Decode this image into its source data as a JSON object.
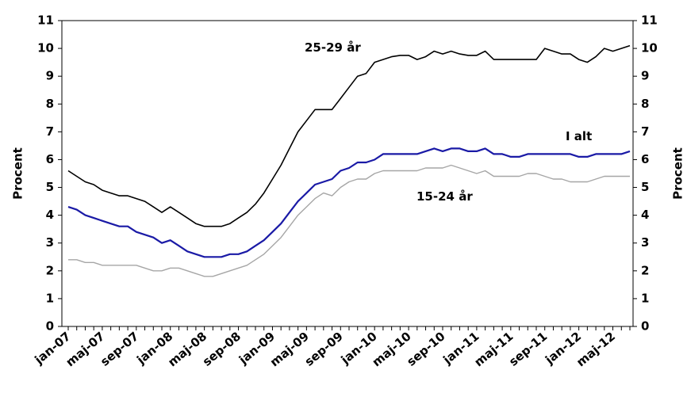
{
  "chart_data": {
    "type": "line",
    "title": "",
    "xlabel": "",
    "ylabel_left": "Procent",
    "ylabel_right": "Procent",
    "ylim": [
      0,
      11
    ],
    "y_ticks": [
      0,
      1,
      2,
      3,
      4,
      5,
      6,
      7,
      8,
      9,
      10,
      11
    ],
    "grid": false,
    "legend": "none",
    "x_tick_labels": [
      "jan-07",
      "maj-07",
      "sep-07",
      "jan-08",
      "maj-08",
      "sep-08",
      "jan-09",
      "maj-09",
      "sep-09",
      "jan-10",
      "maj-10",
      "sep-10",
      "jan-11",
      "maj-11",
      "sep-11",
      "jan-12",
      "maj-12"
    ],
    "x": [
      "jan-07",
      "feb-07",
      "mar-07",
      "apr-07",
      "maj-07",
      "jun-07",
      "jul-07",
      "aug-07",
      "sep-07",
      "okt-07",
      "nov-07",
      "dec-07",
      "jan-08",
      "feb-08",
      "mar-08",
      "apr-08",
      "maj-08",
      "jun-08",
      "jul-08",
      "aug-08",
      "sep-08",
      "okt-08",
      "nov-08",
      "dec-08",
      "jan-09",
      "feb-09",
      "mar-09",
      "apr-09",
      "maj-09",
      "jun-09",
      "jul-09",
      "aug-09",
      "sep-09",
      "okt-09",
      "nov-09",
      "dec-09",
      "jan-10",
      "feb-10",
      "mar-10",
      "apr-10",
      "maj-10",
      "jun-10",
      "jul-10",
      "aug-10",
      "sep-10",
      "okt-10",
      "nov-10",
      "dec-10",
      "jan-11",
      "feb-11",
      "mar-11",
      "apr-11",
      "maj-11",
      "jun-11",
      "jul-11",
      "aug-11",
      "sep-11",
      "okt-11",
      "nov-11",
      "dec-11",
      "jan-12",
      "feb-12",
      "mar-12",
      "apr-12",
      "maj-12",
      "jun-12",
      "jul-12"
    ],
    "series": [
      {
        "name": "25-29 år",
        "color": "#000000",
        "values": [
          5.6,
          5.4,
          5.2,
          5.1,
          4.9,
          4.8,
          4.7,
          4.7,
          4.6,
          4.5,
          4.3,
          4.1,
          4.3,
          4.1,
          3.9,
          3.7,
          3.6,
          3.6,
          3.6,
          3.7,
          3.9,
          4.1,
          4.4,
          4.8,
          5.3,
          5.8,
          6.4,
          7.0,
          7.4,
          7.8,
          7.8,
          7.8,
          8.2,
          8.6,
          9.0,
          9.1,
          9.5,
          9.6,
          9.7,
          9.75,
          9.75,
          9.6,
          9.7,
          9.9,
          9.8,
          9.9,
          9.8,
          9.75,
          9.75,
          9.9,
          9.6,
          9.6,
          9.6,
          9.6,
          9.6,
          9.6,
          10.0,
          9.9,
          9.8,
          9.8,
          9.6,
          9.5,
          9.7,
          10.0,
          9.9,
          10.0,
          10.1
        ]
      },
      {
        "name": "I alt",
        "color": "#1a1aa6",
        "values": [
          4.3,
          4.2,
          4.0,
          3.9,
          3.8,
          3.7,
          3.6,
          3.6,
          3.4,
          3.3,
          3.2,
          3.0,
          3.1,
          2.9,
          2.7,
          2.6,
          2.5,
          2.5,
          2.5,
          2.6,
          2.6,
          2.7,
          2.9,
          3.1,
          3.4,
          3.7,
          4.1,
          4.5,
          4.8,
          5.1,
          5.2,
          5.3,
          5.6,
          5.7,
          5.9,
          5.9,
          6.0,
          6.2,
          6.2,
          6.2,
          6.2,
          6.2,
          6.3,
          6.4,
          6.3,
          6.4,
          6.4,
          6.3,
          6.3,
          6.4,
          6.2,
          6.2,
          6.1,
          6.1,
          6.2,
          6.2,
          6.2,
          6.2,
          6.2,
          6.2,
          6.1,
          6.1,
          6.2,
          6.2,
          6.2,
          6.2,
          6.3
        ]
      },
      {
        "name": "15-24 år",
        "color": "#a6a6a6",
        "values": [
          2.4,
          2.4,
          2.3,
          2.3,
          2.2,
          2.2,
          2.2,
          2.2,
          2.2,
          2.1,
          2.0,
          2.0,
          2.1,
          2.1,
          2.0,
          1.9,
          1.8,
          1.8,
          1.9,
          2.0,
          2.1,
          2.2,
          2.4,
          2.6,
          2.9,
          3.2,
          3.6,
          4.0,
          4.3,
          4.6,
          4.8,
          4.7,
          5.0,
          5.2,
          5.3,
          5.3,
          5.5,
          5.6,
          5.6,
          5.6,
          5.6,
          5.6,
          5.7,
          5.7,
          5.7,
          5.8,
          5.7,
          5.6,
          5.5,
          5.6,
          5.4,
          5.4,
          5.4,
          5.4,
          5.5,
          5.5,
          5.4,
          5.3,
          5.3,
          5.2,
          5.2,
          5.2,
          5.3,
          5.4,
          5.4,
          5.4,
          5.4
        ]
      }
    ],
    "annotations": [
      {
        "series": "25-29 år",
        "text": "25-29 år"
      },
      {
        "series": "I alt",
        "text": "I alt"
      },
      {
        "series": "15-24 år",
        "text": "15-24 år"
      }
    ]
  }
}
